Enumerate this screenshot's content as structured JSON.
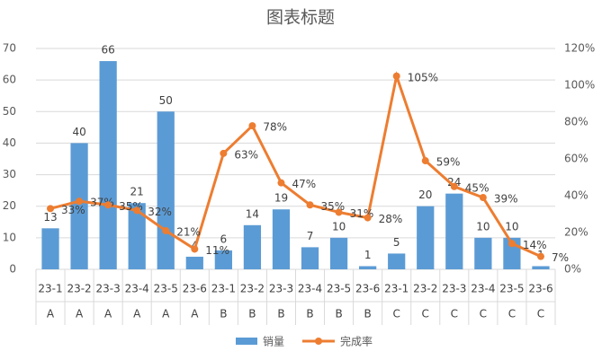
{
  "chart_data": {
    "type": "bar-line",
    "title": "图表标题",
    "categories": [
      "23-1",
      "23-2",
      "23-3",
      "23-4",
      "23-5",
      "23-6",
      "23-1",
      "23-2",
      "23-3",
      "23-4",
      "23-5",
      "23-6",
      "23-1",
      "23-2",
      "23-3",
      "23-4",
      "23-5",
      "23-6"
    ],
    "groups": [
      "A",
      "A",
      "A",
      "A",
      "A",
      "A",
      "B",
      "B",
      "B",
      "B",
      "B",
      "B",
      "C",
      "C",
      "C",
      "C",
      "C",
      "C"
    ],
    "series": [
      {
        "name": "销量",
        "type": "bar",
        "color": "#5b9bd5",
        "values": [
          13,
          40,
          66,
          21,
          50,
          4,
          6,
          14,
          19,
          7,
          10,
          1,
          5,
          20,
          24,
          10,
          10,
          1
        ]
      },
      {
        "name": "完成率",
        "type": "line",
        "axis": "y2",
        "color": "#ed7d31",
        "values": [
          33,
          37,
          35,
          32,
          21,
          11,
          63,
          78,
          47,
          35,
          31,
          28,
          105,
          59,
          45,
          39,
          14,
          7
        ],
        "value_labels": [
          "33%",
          "37%",
          "35%",
          "32%",
          "21%",
          "11%",
          "63%",
          "78%",
          "47%",
          "35%",
          "31%",
          "28%",
          "105%",
          "59%",
          "45%",
          "39%",
          "14%",
          "7%"
        ]
      }
    ],
    "ylim": [
      0,
      70
    ],
    "yticks": [
      0,
      10,
      20,
      30,
      40,
      50,
      60,
      70
    ],
    "y2lim": [
      0,
      120
    ],
    "y2ticks": [
      {
        "value": 0,
        "label": "0%"
      },
      {
        "value": 20,
        "label": "20%"
      },
      {
        "value": 40,
        "label": "40%"
      },
      {
        "value": 60,
        "label": "60%"
      },
      {
        "value": 80,
        "label": "80%"
      },
      {
        "value": 100,
        "label": "100%"
      },
      {
        "value": 120,
        "label": "120%"
      }
    ],
    "grid": true
  }
}
